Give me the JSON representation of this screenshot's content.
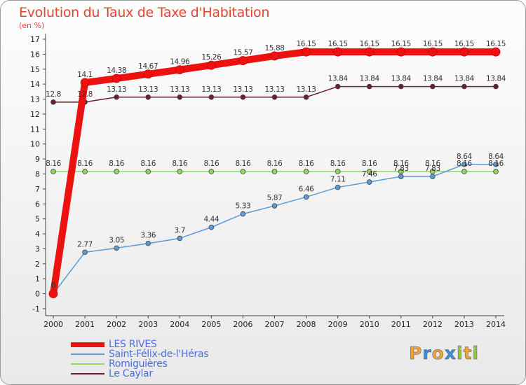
{
  "chart_data": {
    "type": "line",
    "title": "Evolution du Taux de Taxe d'Habitation",
    "subtitle": "(en %)",
    "x": [
      2000,
      2001,
      2002,
      2003,
      2004,
      2005,
      2006,
      2007,
      2008,
      2009,
      2010,
      2011,
      2012,
      2013,
      2014
    ],
    "ylim": [
      -1,
      17
    ],
    "yticks": [
      -1,
      0,
      1,
      2,
      3,
      4,
      5,
      6,
      7,
      8,
      9,
      10,
      11,
      12,
      13,
      14,
      15,
      16,
      17
    ],
    "grid": false,
    "legend_position": "bottom-left",
    "series": [
      {
        "name": "Le Caylar",
        "color": "#6b1f2a",
        "values": [
          12.8,
          12.8,
          13.13,
          13.13,
          13.13,
          13.13,
          13.13,
          13.13,
          13.13,
          13.84,
          13.84,
          13.84,
          13.84,
          13.84,
          13.84
        ],
        "labels": [
          "12.8",
          "12.8",
          "13.13",
          "13.13",
          "13.13",
          "13.13",
          "13.13",
          "13.13",
          "13.13",
          "13.84",
          "13.84",
          "13.84",
          "13.84",
          "13.84",
          "13.84"
        ]
      },
      {
        "name": "Romiguières",
        "color": "#8fd65a",
        "values": [
          8.16,
          8.16,
          8.16,
          8.16,
          8.16,
          8.16,
          8.16,
          8.16,
          8.16,
          8.16,
          8.16,
          8.16,
          8.16,
          8.16,
          8.16
        ],
        "labels": [
          "8.16",
          "8.16",
          "8.16",
          "8.16",
          "8.16",
          "8.16",
          "8.16",
          "8.16",
          "8.16",
          "8.16",
          "8.16",
          "8.16",
          "8.16",
          "8.16",
          "8.16"
        ]
      },
      {
        "name": "Saint-Félix-de-l'Héras",
        "color": "#5b9bd5",
        "values": [
          0,
          2.77,
          3.05,
          3.36,
          3.7,
          4.44,
          5.33,
          5.87,
          6.46,
          7.11,
          7.46,
          7.83,
          7.83,
          8.64,
          8.64
        ],
        "labels": [
          "0",
          "2.77",
          "3.05",
          "3.36",
          "3.7",
          "4.44",
          "5.33",
          "5.87",
          "6.46",
          "7.11",
          "7.46",
          "7.83",
          "7.83",
          "8.64",
          "8.64"
        ]
      },
      {
        "name": "LES RIVES",
        "color": "#ee1111",
        "values": [
          0,
          14.1,
          14.38,
          14.67,
          14.96,
          15.26,
          15.57,
          15.88,
          16.15,
          16.15,
          16.15,
          16.15,
          16.15,
          16.15,
          16.15
        ],
        "labels": [
          "0",
          "14.1",
          "14.38",
          "14.67",
          "14.96",
          "15.26",
          "15.57",
          "15.88",
          "16.15",
          "16.15",
          "16.15",
          "16.15",
          "16.15",
          "16.15",
          "16.15"
        ]
      }
    ]
  },
  "legend": {
    "items": [
      {
        "name": "LES RIVES",
        "color": "#ee1111"
      },
      {
        "name": "Saint-Félix-de-l'Héras",
        "color": "#5b9bd5"
      },
      {
        "name": "Romiguières",
        "color": "#8fd65a"
      },
      {
        "name": "Le Caylar",
        "color": "#6b1f2a"
      }
    ]
  },
  "logo": {
    "letters": [
      {
        "ch": "P",
        "color": "#f0a23a"
      },
      {
        "ch": "r",
        "color": "#3a8fd9"
      },
      {
        "ch": "o",
        "color": "#f0a23a"
      },
      {
        "ch": "x",
        "color": "#3a8fd9"
      },
      {
        "ch": "i",
        "color": "#8fc83a"
      },
      {
        "ch": "t",
        "color": "#f0a23a"
      },
      {
        "ch": "i",
        "color": "#8fc83a"
      }
    ]
  }
}
